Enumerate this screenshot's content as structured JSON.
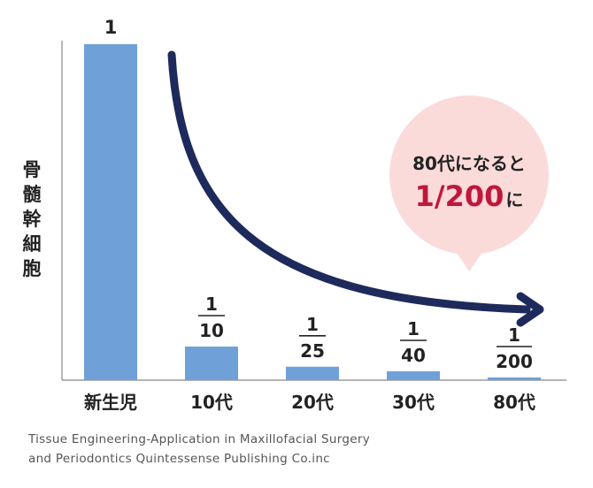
{
  "chart_data": {
    "type": "bar",
    "ylabel": "骨髄幹細胞",
    "categories": [
      "新生児",
      "10代",
      "20代",
      "30代",
      "80代"
    ],
    "values": [
      1,
      0.1,
      0.04,
      0.025,
      0.005
    ],
    "ylim": [
      0,
      1
    ],
    "bar_labels": [
      {
        "whole": "1"
      },
      {
        "num": "1",
        "den": "10"
      },
      {
        "num": "1",
        "den": "25"
      },
      {
        "num": "1",
        "den": "40"
      },
      {
        "num": "1",
        "den": "200"
      }
    ],
    "annotation": {
      "line1": "80代になると",
      "emphasis": "1/200",
      "suffix": "に"
    },
    "colors": {
      "bar": "#6fa0d8",
      "arrow": "#1e2a5c",
      "bubble": "#fbdada",
      "emphasis": "#c0173b",
      "axis": "#888888"
    }
  },
  "source": {
    "line1": "Tissue Engineering-Application in Maxillofacial Surgery",
    "line2": "and Periodontics Quintessense Publishing Co.inc"
  }
}
